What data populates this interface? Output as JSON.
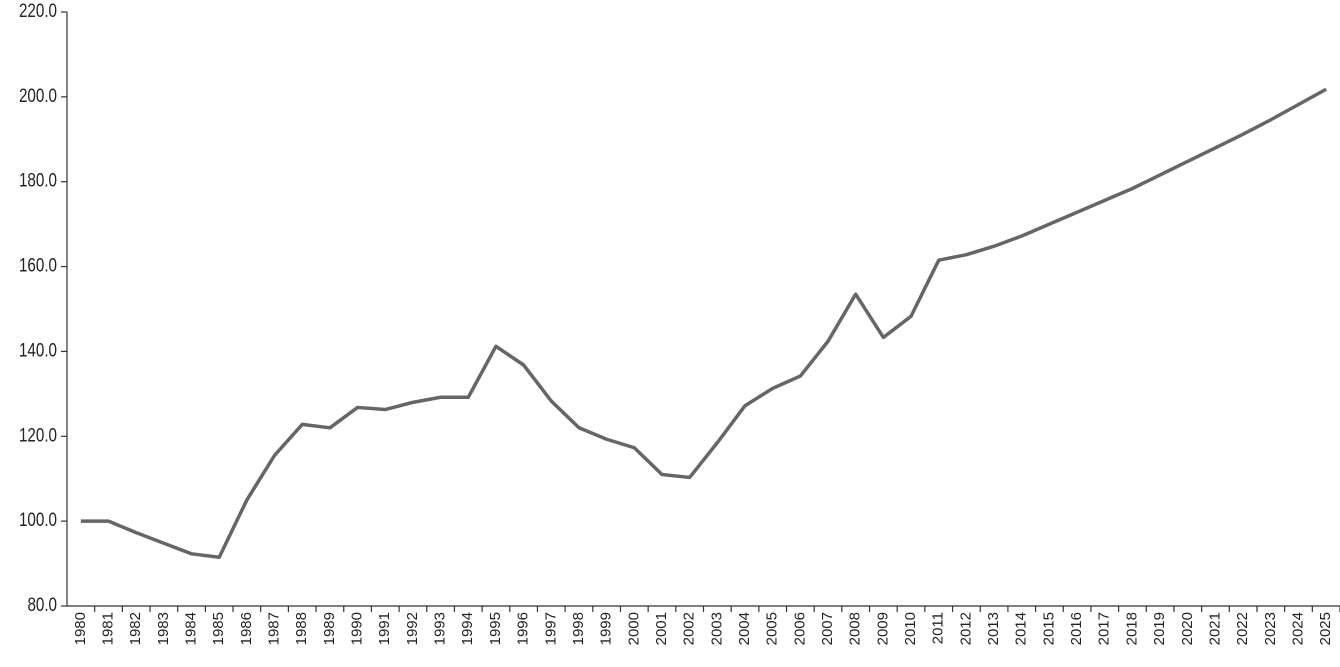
{
  "chart_data": {
    "type": "line",
    "categories": [
      "1980",
      "1981",
      "1982",
      "1983",
      "1984",
      "1985",
      "1986",
      "1987",
      "1988",
      "1989",
      "1990",
      "1991",
      "1992",
      "1993",
      "1994",
      "1995",
      "1996",
      "1997",
      "1998",
      "1999",
      "2000",
      "2001",
      "2002",
      "2003",
      "2004",
      "2005",
      "2006",
      "2007",
      "2008",
      "2009",
      "2010",
      "2011",
      "2012",
      "2013",
      "2014",
      "2015",
      "2016",
      "2017",
      "2018",
      "2019",
      "2020",
      "2021",
      "2022",
      "2023",
      "2024",
      "2025"
    ],
    "values": [
      100,
      100,
      97.3,
      94.8,
      92.3,
      91.5,
      105,
      115.5,
      122.8,
      122,
      126.8,
      126.3,
      128,
      129.2,
      129.2,
      141.2,
      136.8,
      128.3,
      122,
      119.3,
      117.3,
      111,
      110.3,
      118.5,
      127.2,
      131.3,
      134.2,
      142.4,
      153.5,
      143.3,
      148.3,
      161.5,
      162.8,
      164.8,
      167.2,
      170,
      172.8,
      175.6,
      178.4,
      181.6,
      184.8,
      188,
      191.2,
      194.6,
      198.2,
      201.8
    ],
    "color": "#666666",
    "ylim": [
      80,
      220
    ],
    "yticks": [
      {
        "value": 80,
        "label": "80.0"
      },
      {
        "value": 100,
        "label": "100.0"
      },
      {
        "value": 120,
        "label": "120.0"
      },
      {
        "value": 140,
        "label": "140.0"
      },
      {
        "value": 160,
        "label": "160.0"
      },
      {
        "value": 180,
        "label": "180.0"
      },
      {
        "value": 200,
        "label": "200.0"
      },
      {
        "value": 220,
        "label": "220.0"
      }
    ],
    "grid": false
  }
}
